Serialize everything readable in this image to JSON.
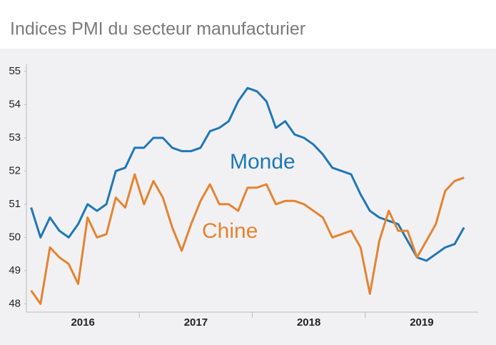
{
  "chart_data": {
    "type": "line",
    "title": "Indices PMI du secteur manufacturier",
    "xgroups": [
      {
        "label": "2016",
        "count": 12
      },
      {
        "label": "2017",
        "count": 12
      },
      {
        "label": "2018",
        "count": 12
      },
      {
        "label": "2019",
        "count": 11
      }
    ],
    "series": [
      {
        "name": "Monde",
        "color": "#1f77b4",
        "values": [
          50.9,
          50.0,
          50.6,
          50.2,
          50.0,
          50.4,
          51.0,
          50.8,
          51.0,
          52.0,
          52.1,
          52.7,
          52.7,
          53.0,
          53.0,
          52.7,
          52.6,
          52.6,
          52.7,
          53.2,
          53.3,
          53.5,
          54.1,
          54.5,
          54.4,
          54.1,
          53.3,
          53.5,
          53.1,
          53.0,
          52.8,
          52.5,
          52.1,
          52.0,
          51.9,
          51.3,
          50.8,
          50.6,
          50.5,
          50.4,
          49.9,
          49.4,
          49.3,
          49.5,
          49.7,
          49.8,
          50.3
        ]
      },
      {
        "name": "Chine",
        "color": "#e5832f",
        "values": [
          48.4,
          48.0,
          49.7,
          49.4,
          49.2,
          48.6,
          50.6,
          50.0,
          50.1,
          51.2,
          50.9,
          51.9,
          51.0,
          51.7,
          51.2,
          50.3,
          49.6,
          50.4,
          51.1,
          51.6,
          51.0,
          51.0,
          50.8,
          51.5,
          51.5,
          51.6,
          51.0,
          51.1,
          51.1,
          51.0,
          50.8,
          50.6,
          50.0,
          50.1,
          50.2,
          49.7,
          48.3,
          49.9,
          50.8,
          50.2,
          50.2,
          49.4,
          49.9,
          50.4,
          51.4,
          51.7,
          51.8
        ]
      }
    ],
    "ylim": [
      47.75,
      55
    ],
    "yticks": [
      48,
      49,
      50,
      51,
      52,
      53,
      54,
      55
    ]
  }
}
